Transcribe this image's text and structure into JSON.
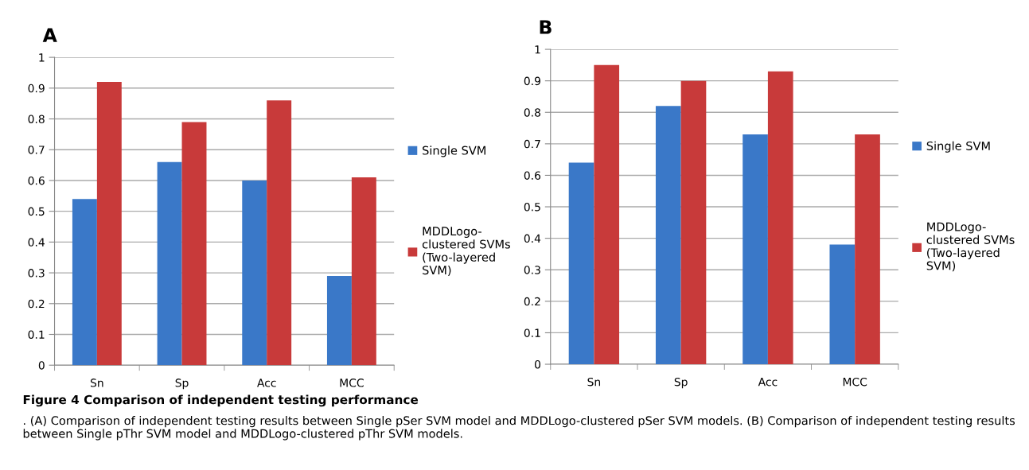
{
  "chart_data": [
    {
      "type": "bar",
      "title": "A",
      "categories": [
        "Sn",
        "Sp",
        "Acc",
        "MCC"
      ],
      "series": [
        {
          "name": "Single SVM",
          "color": "#3a78c8",
          "values": [
            0.54,
            0.66,
            0.6,
            0.29
          ]
        },
        {
          "name": "MDDLogo-\nclustered SVMs\n(Two-layered\nSVM)",
          "color": "#c83a3a",
          "values": [
            0.92,
            0.79,
            0.86,
            0.61
          ]
        }
      ],
      "ylim": [
        0,
        1
      ],
      "yticks": [
        0,
        0.1,
        0.2,
        0.3,
        0.4,
        0.5,
        0.6,
        0.7,
        0.8,
        0.9,
        1
      ],
      "grid": "y",
      "legend": "right",
      "annotations": [
        "Figure 4 Comparison of independent testing performance",
        ". (A) Comparison of independent testing results between Single pSer SVM model and MDDLogo-clustered pSer SVM models. (B) Comparison of independent testing results between Single pThr SVM model and MDDLogo-clustered pThr SVM models."
      ]
    },
    {
      "type": "bar",
      "title": "B",
      "categories": [
        "Sn",
        "Sp",
        "Acc",
        "MCC"
      ],
      "series": [
        {
          "name": "Single SVM",
          "color": "#3a78c8",
          "values": [
            0.64,
            0.82,
            0.73,
            0.38
          ]
        },
        {
          "name": "MDDLogo-\nclustered SVMs\n(Two-layered\nSVM)",
          "color": "#c83a3a",
          "values": [
            0.95,
            0.9,
            0.93,
            0.73
          ]
        }
      ],
      "ylim": [
        0,
        1
      ],
      "yticks": [
        0,
        0.1,
        0.2,
        0.3,
        0.4,
        0.5,
        0.6,
        0.7,
        0.8,
        0.9,
        1
      ],
      "grid": "y",
      "legend": "right"
    }
  ]
}
